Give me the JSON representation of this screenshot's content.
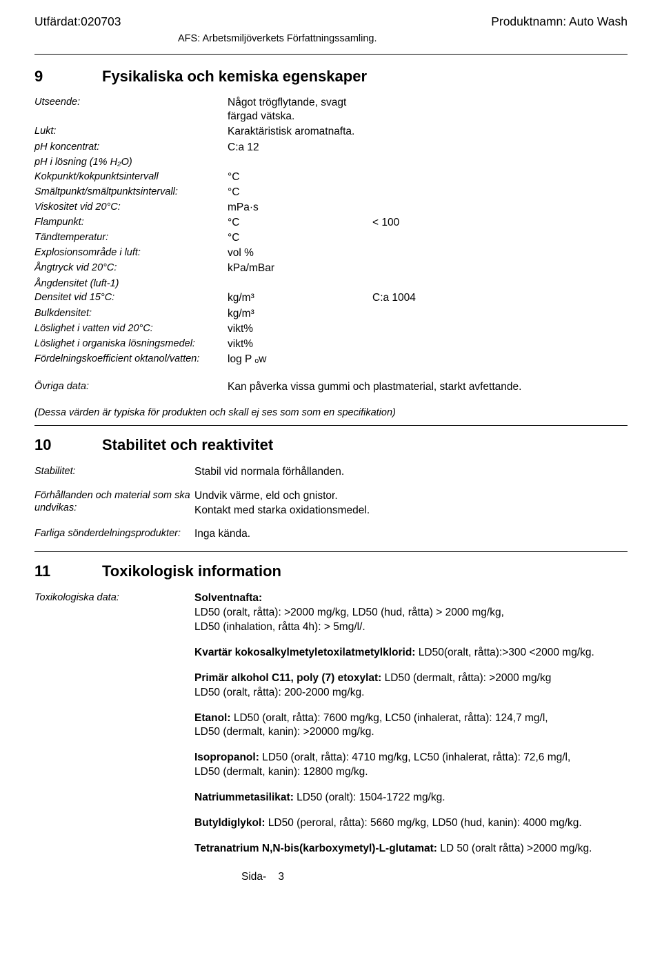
{
  "header": {
    "issued": "Utfärdat:020703",
    "product_name": "Produktnamn: Auto Wash",
    "afs": "AFS: Arbetsmiljöverkets Författningssamling."
  },
  "section9": {
    "num": "9",
    "title": "Fysikaliska och kemiska egenskaper",
    "rows": [
      {
        "label": "Utseende:",
        "v1": "Något trögflytande, svagt färgad vätska.",
        "v2": ""
      },
      {
        "label": "Lukt:",
        "v1": "Karaktäristisk aromatnafta.",
        "v2": ""
      },
      {
        "label": "pH koncentrat:",
        "v1": "C:a 12",
        "v2": ""
      },
      {
        "label": "pH i lösning (1% H₂O)",
        "v1": "",
        "v2": ""
      },
      {
        "label": "Kokpunkt/kokpunktsintervall",
        "v1": "°C",
        "v2": ""
      },
      {
        "label": "Smältpunkt/smältpunktsintervall:",
        "v1": "°C",
        "v2": ""
      },
      {
        "label": "Viskositet vid 20°C:",
        "v1": "mPa·s",
        "v2": ""
      },
      {
        "label": "Flampunkt:",
        "v1": "°C",
        "v2": "< 100"
      },
      {
        "label": "Tändtemperatur:",
        "v1": "°C",
        "v2": ""
      },
      {
        "label": "Explosionsområde i luft:",
        "v1": "vol %",
        "v2": ""
      },
      {
        "label": "Ångtryck vid 20°C:",
        "v1": "kPa/mBar",
        "v2": ""
      },
      {
        "label": "Ångdensitet (luft-1)",
        "v1": "",
        "v2": ""
      },
      {
        "label": "Densitet vid 15°C:",
        "v1": "kg/m³",
        "v2": "C:a 1004"
      },
      {
        "label": "Bulkdensitet:",
        "v1": "kg/m³",
        "v2": ""
      },
      {
        "label": "Löslighet i vatten vid 20°C:",
        "v1": "vikt%",
        "v2": ""
      },
      {
        "label": "Löslighet i organiska lösningsmedel:",
        "v1": "vikt%",
        "v2": ""
      },
      {
        "label": "Fördelningskoefficient oktanol/vatten:",
        "v1": "log P ₒw",
        "v2": ""
      }
    ],
    "ovriga_label": "Övriga data:",
    "ovriga_val": "Kan påverka vissa gummi och plastmaterial, starkt avfettande.",
    "spec_note": "(Dessa värden är typiska för produkten och skall ej ses som som en specifikation)"
  },
  "section10": {
    "num": "10",
    "title": "Stabilitet och reaktivitet",
    "rows": [
      {
        "label": "Stabilitet:",
        "val": "Stabil vid normala förhållanden."
      },
      {
        "label": "Förhållanden och material som ska undvikas:",
        "val": "Undvik värme, eld och gnistor.\nKontakt med starka oxidationsmedel."
      },
      {
        "label": "Farliga sönderdelningsprodukter:",
        "val": "Inga kända."
      }
    ]
  },
  "section11": {
    "num": "11",
    "title": "Toxikologisk information",
    "tox_label": "Toxikologiska data:",
    "blocks": [
      {
        "head": "Solventnafta:",
        "body": "LD50 (oralt, råtta): >2000 mg/kg, LD50 (hud, råtta) > 2000 mg/kg,\nLD50 (inhalation, råtta 4h): > 5mg/l/."
      },
      {
        "head": "Kvartär kokosalkylmetyletoxilatmetylklorid:",
        "body": " LD50(oralt, råtta):>300 <2000 mg/kg."
      },
      {
        "head": "Primär alkohol C11, poly (7) etoxylat:",
        "body": " LD50 (dermalt, råtta): >2000 mg/kg\nLD50 (oralt, råtta): 200-2000 mg/kg."
      },
      {
        "head": "Etanol:",
        "body": " LD50 (oralt, råtta): 7600 mg/kg, LC50 (inhalerat, råtta): 124,7 mg/l,\nLD50 (dermalt, kanin): >20000 mg/kg."
      },
      {
        "head": "Isopropanol:",
        "body": " LD50 (oralt, råtta): 4710 mg/kg, LC50 (inhalerat, råtta): 72,6 mg/l,\nLD50 (dermalt, kanin): 12800 mg/kg."
      },
      {
        "head": "Natriummetasilikat:",
        "body": " LD50 (oralt): 1504-1722 mg/kg."
      },
      {
        "head": "Butyldiglykol:",
        "body": " LD50 (peroral, råtta): 5660 mg/kg, LD50 (hud, kanin): 4000 mg/kg."
      },
      {
        "head": "Tetranatrium N,N-bis(karboxymetyl)-L-glutamat:",
        "body": " LD 50 (oralt råtta) >2000 mg/kg."
      }
    ]
  },
  "footer": {
    "page_label": "Sida-",
    "page_num": "3"
  }
}
